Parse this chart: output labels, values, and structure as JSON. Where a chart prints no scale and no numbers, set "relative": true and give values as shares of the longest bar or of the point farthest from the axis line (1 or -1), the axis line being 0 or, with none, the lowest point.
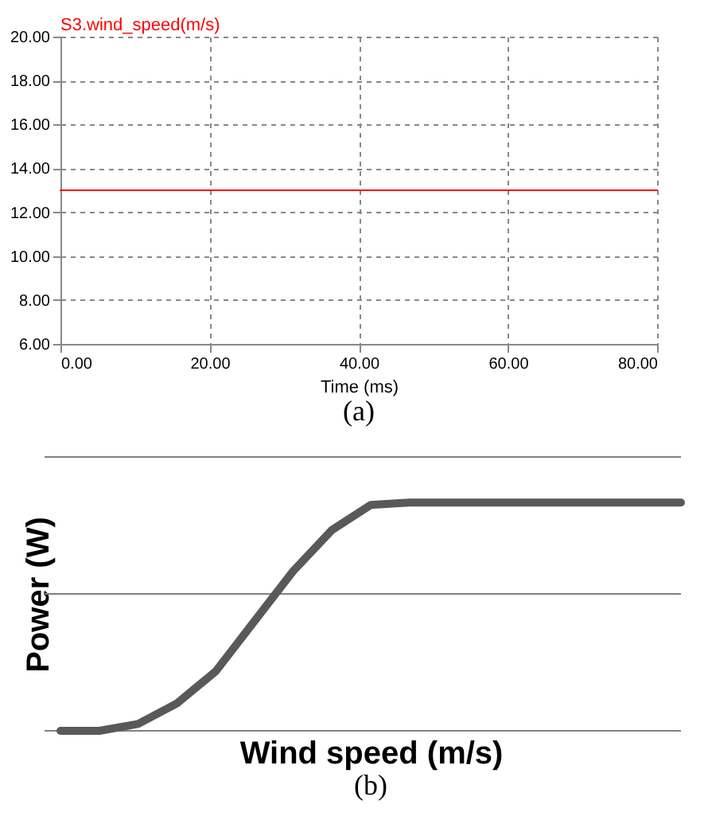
{
  "chart_data": [
    {
      "type": "line",
      "xlabel": "Time (ms)",
      "annotations": [
        "(a)"
      ],
      "x": [
        0,
        80
      ],
      "series": [
        {
          "name": "S3.wind_speed(m/s)",
          "color": "#ff0000",
          "values": [
            13.0,
            13.0
          ]
        }
      ],
      "xlim": [
        0,
        80
      ],
      "xticks": [
        {
          "value": 0,
          "label": "0.00"
        },
        {
          "value": 20,
          "label": "20.00"
        },
        {
          "value": 40,
          "label": "40.00"
        },
        {
          "value": 60,
          "label": "60.00"
        },
        {
          "value": 80,
          "label": "80.00"
        }
      ],
      "ylim": [
        6,
        20
      ],
      "yticks": [
        {
          "value": 6,
          "label": "6.00"
        },
        {
          "value": 8,
          "label": "8.00"
        },
        {
          "value": 10,
          "label": "10.00"
        },
        {
          "value": 12,
          "label": "12.00"
        },
        {
          "value": 14,
          "label": "14.00"
        },
        {
          "value": 16,
          "label": "16.00"
        },
        {
          "value": 18,
          "label": "18.00"
        },
        {
          "value": 20,
          "label": "20.00"
        }
      ],
      "grid": true,
      "line_style": "solid",
      "marker": "none"
    },
    {
      "type": "line",
      "xlabel": "Wind speed (m/s)",
      "ylabel": "Power (W)",
      "annotations": [
        "(b)"
      ],
      "relative": true,
      "categories": [
        null,
        null,
        null,
        null,
        null,
        null,
        null,
        null,
        null,
        null,
        null,
        null,
        null,
        null,
        null,
        null,
        null
      ],
      "series": [
        {
          "color": "#595959",
          "values": [
            0,
            0,
            0.03,
            0.12,
            0.26,
            0.48,
            0.7,
            0.88,
            0.99,
            1,
            1,
            1,
            1,
            1,
            1,
            1,
            1
          ]
        }
      ],
      "ref_lines": [
        {
          "axis": "y",
          "value": 0,
          "color": "#808080"
        },
        {
          "axis": "y",
          "value": 0.6,
          "color": "#808080"
        },
        {
          "axis": "y",
          "value": 1.2,
          "color": "#808080"
        }
      ],
      "tick_labels": false,
      "line_style": "solid",
      "marker": "none"
    }
  ]
}
